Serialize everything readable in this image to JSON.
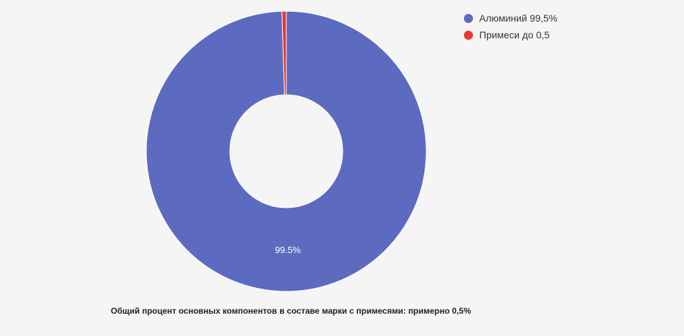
{
  "chart_data": {
    "type": "pie",
    "style": "donut",
    "slices": [
      {
        "legend": "Алюминий 99,5%",
        "value": 99.5,
        "color": "#5c6bc0",
        "data_label": "99.5%"
      },
      {
        "legend": "Примеси до 0,5",
        "value": 0.5,
        "color": "#e53935",
        "data_label": ""
      }
    ],
    "legend_position": "top-right",
    "caption": "Общий процент основных компонентов в составе марки с примесями: примерно 0,5%"
  }
}
